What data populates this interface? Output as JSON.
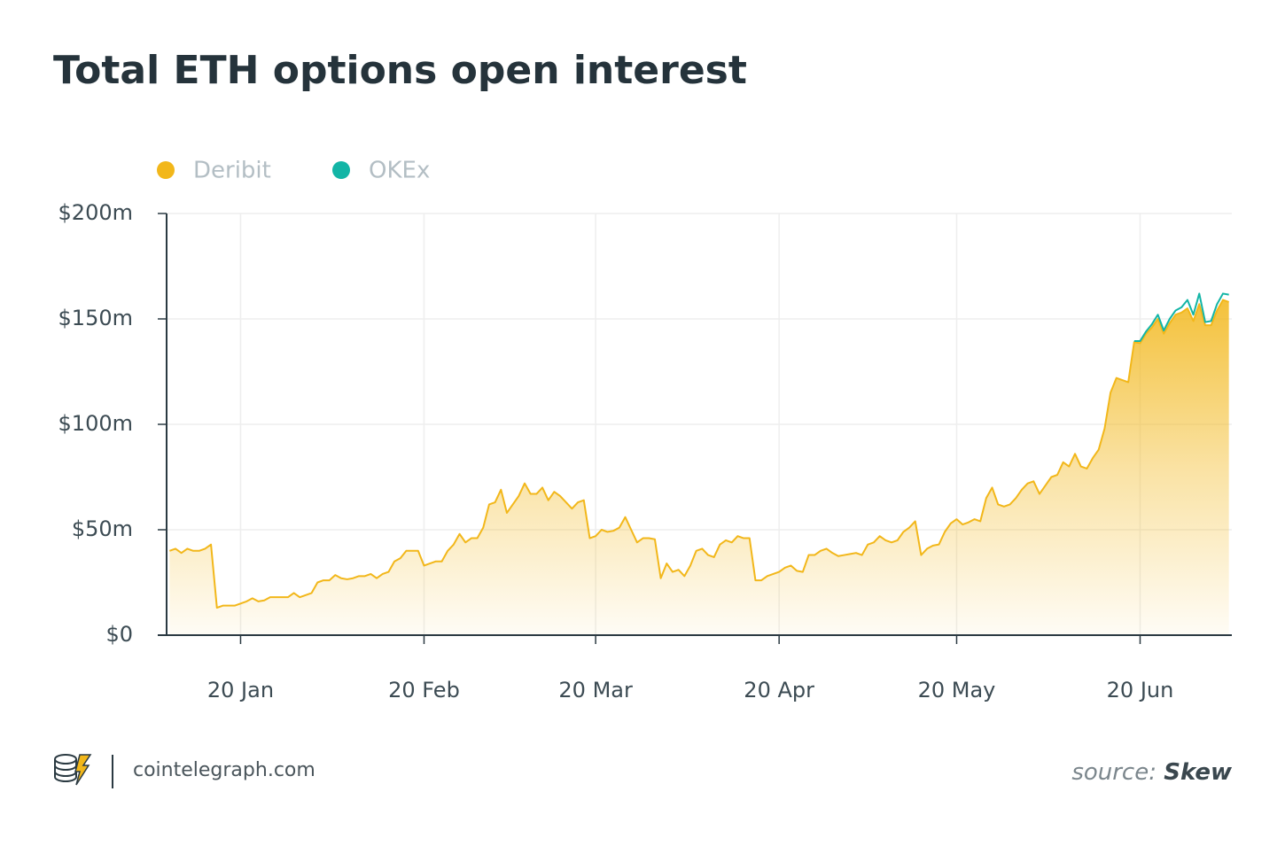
{
  "chart_data": {
    "type": "area",
    "title": "Total ETH options open interest",
    "stacked": true,
    "categories": [
      null,
      null,
      null,
      null,
      null,
      null,
      null,
      null,
      null,
      null,
      null,
      null,
      "20 Jan",
      null,
      null,
      null,
      null,
      null,
      null,
      null,
      null,
      null,
      null,
      null,
      null,
      null,
      null,
      null,
      null,
      null,
      null,
      null,
      null,
      null,
      null,
      null,
      null,
      null,
      null,
      null,
      null,
      null,
      null,
      "20 Feb",
      null,
      null,
      null,
      null,
      null,
      null,
      null,
      null,
      null,
      null,
      null,
      null,
      null,
      null,
      null,
      null,
      null,
      null,
      null,
      null,
      null,
      null,
      null,
      null,
      null,
      null,
      null,
      null,
      "20 Mar",
      null,
      null,
      null,
      null,
      null,
      null,
      null,
      null,
      null,
      null,
      null,
      null,
      null,
      null,
      null,
      null,
      null,
      null,
      null,
      null,
      null,
      null,
      null,
      null,
      null,
      null,
      null,
      null,
      null,
      null,
      "20 Apr",
      null,
      null,
      null,
      null,
      null,
      null,
      null,
      null,
      null,
      null,
      null,
      null,
      null,
      null,
      null,
      null,
      null,
      null,
      null,
      null,
      null,
      null,
      null,
      null,
      null,
      null,
      null,
      null,
      null,
      "20 May",
      null,
      null,
      null,
      null,
      null,
      null,
      null,
      null,
      null,
      null,
      null,
      null,
      null,
      null,
      null,
      null,
      null,
      null,
      null,
      null,
      null,
      null,
      null,
      null,
      null,
      null,
      null,
      null,
      null,
      null,
      "20 Jun",
      null,
      null,
      null,
      null,
      null,
      null,
      null,
      null,
      null,
      null,
      null,
      null,
      null,
      null,
      null
    ],
    "series": [
      {
        "name": "Deribit",
        "color": "#f2b71a",
        "values": [
          40,
          41,
          39,
          41,
          40,
          40,
          41,
          43,
          13,
          14,
          14,
          14,
          15,
          16,
          17.5,
          16,
          16.5,
          18,
          18,
          18,
          18,
          20,
          18,
          19,
          20,
          25,
          26,
          26,
          28.5,
          27,
          26.5,
          27,
          28,
          28,
          29,
          27,
          29,
          30,
          35,
          36.5,
          40,
          40,
          40,
          33,
          34,
          35,
          35,
          40,
          43,
          48,
          44,
          46,
          46,
          51,
          62,
          63,
          69,
          58,
          62,
          66,
          72,
          67,
          67,
          70,
          64,
          68,
          66,
          63,
          60,
          63,
          64,
          46,
          47,
          50,
          49,
          49.5,
          51,
          56,
          50,
          44,
          46,
          46,
          45.5,
          27,
          34,
          30,
          31,
          28,
          33,
          40,
          41,
          38,
          37,
          43,
          45,
          44,
          47,
          46,
          46,
          26,
          26,
          28,
          29,
          30,
          32,
          33,
          30.5,
          30,
          38,
          38,
          40,
          41,
          39,
          37.5,
          38,
          38.5,
          39,
          38,
          43,
          44,
          47,
          45,
          44,
          45,
          49,
          51,
          54,
          38,
          41,
          42.5,
          43,
          49,
          53,
          55,
          52.5,
          53.5,
          55,
          54,
          65,
          70,
          62,
          61,
          62,
          65,
          69,
          72,
          73,
          67,
          71,
          75,
          76,
          82,
          80,
          86,
          80,
          79,
          84,
          88,
          98,
          115,
          122,
          121,
          120,
          139,
          138.5,
          143,
          146,
          150,
          143,
          148,
          152,
          153,
          155,
          149,
          157,
          147,
          147,
          154,
          159,
          158
        ]
      },
      {
        "name": "OKEx",
        "color": "#13b5a6",
        "values": [
          null,
          null,
          null,
          null,
          null,
          null,
          null,
          null,
          null,
          null,
          null,
          null,
          null,
          null,
          null,
          null,
          null,
          null,
          null,
          null,
          null,
          null,
          null,
          null,
          null,
          null,
          null,
          null,
          null,
          null,
          null,
          null,
          null,
          null,
          null,
          null,
          null,
          null,
          null,
          null,
          null,
          null,
          null,
          null,
          null,
          null,
          null,
          null,
          null,
          null,
          null,
          null,
          null,
          null,
          null,
          null,
          null,
          null,
          null,
          null,
          null,
          null,
          null,
          null,
          null,
          null,
          null,
          null,
          null,
          null,
          null,
          null,
          null,
          null,
          null,
          null,
          null,
          null,
          null,
          null,
          null,
          null,
          null,
          null,
          null,
          null,
          null,
          null,
          null,
          null,
          null,
          null,
          null,
          null,
          null,
          null,
          null,
          null,
          null,
          null,
          null,
          null,
          null,
          null,
          null,
          null,
          null,
          null,
          null,
          null,
          null,
          null,
          null,
          null,
          null,
          null,
          null,
          null,
          null,
          null,
          null,
          null,
          null,
          null,
          null,
          null,
          null,
          null,
          null,
          null,
          null,
          null,
          null,
          null,
          null,
          null,
          null,
          null,
          null,
          null,
          null,
          null,
          null,
          null,
          null,
          null,
          null,
          null,
          null,
          null,
          null,
          null,
          null,
          null,
          null,
          null,
          null,
          null,
          null,
          null,
          null,
          null,
          null,
          0.5,
          1,
          1,
          1.5,
          2,
          1.5,
          2,
          2,
          2.5,
          4,
          3,
          5,
          1.5,
          2,
          3,
          3,
          3.5
        ]
      }
    ],
    "ylim": [
      0,
      200
    ],
    "yticks": [
      {
        "value": 0,
        "label": "$0"
      },
      {
        "value": 50,
        "label": "$50m"
      },
      {
        "value": 100,
        "label": "$100m"
      },
      {
        "value": 150,
        "label": "$150m"
      },
      {
        "value": 200,
        "label": "$200m"
      }
    ],
    "grid": true
  },
  "footer": {
    "site": "cointelegraph.com",
    "source_label": "source:",
    "source_name": "Skew"
  }
}
